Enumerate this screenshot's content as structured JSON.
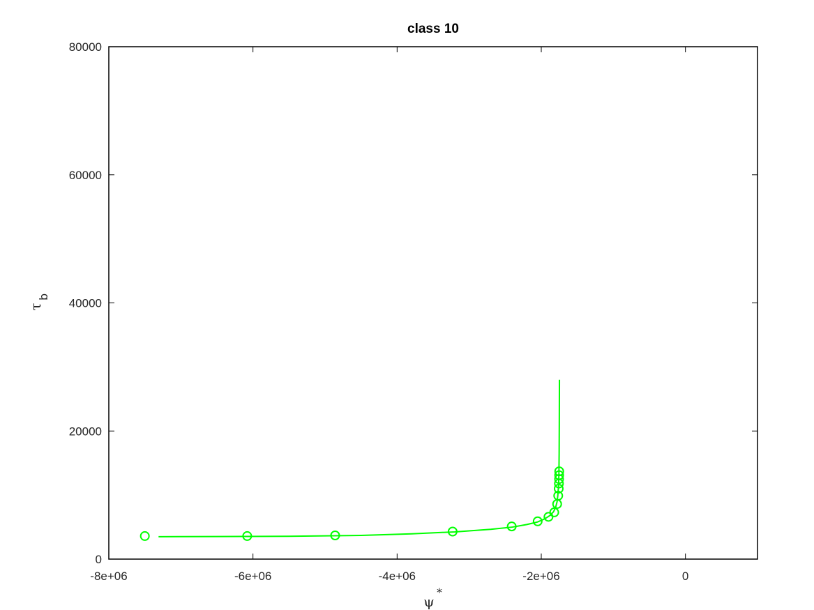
{
  "chart_data": {
    "type": "line",
    "title": "class 10",
    "xlabel": {
      "symbol": "ψ",
      "superscript": "*"
    },
    "ylabel": {
      "symbol": "τ",
      "subscript": "b"
    },
    "xlim": [
      -8000000,
      1000000
    ],
    "ylim": [
      0,
      80000
    ],
    "xticks": [
      -8000000,
      -6000000,
      -4000000,
      -2000000,
      0
    ],
    "xtick_labels": [
      "-8e+06",
      "-6e+06",
      "-4e+06",
      "-2e+06",
      "0"
    ],
    "yticks": [
      0,
      20000,
      40000,
      60000,
      80000
    ],
    "ytick_labels": [
      "0",
      "20000",
      "40000",
      "60000",
      "80000"
    ],
    "grid": false,
    "series": [
      {
        "style": "line",
        "color": "#00ff00",
        "x": [
          -7310000,
          -6500000,
          -5500000,
          -4500000,
          -3800000,
          -3200000,
          -2700000,
          -2400000,
          -2200000,
          -2050000,
          -1950000,
          -1880000,
          -1830000,
          -1800000,
          -1780000,
          -1770000,
          -1760000,
          -1755000,
          -1752000,
          -1750000,
          -1748000
        ],
        "y": [
          3500,
          3520,
          3560,
          3700,
          3950,
          4250,
          4650,
          5000,
          5400,
          5800,
          6300,
          6800,
          7400,
          8100,
          9000,
          10000,
          11500,
          13500,
          16500,
          21000,
          28000
        ]
      },
      {
        "style": "markers",
        "marker": "circle",
        "color": "#00ff00",
        "x": [
          -7500000,
          -6080000,
          -4860000,
          -3230000,
          -2410000,
          -2050000,
          -1900000,
          -1820000,
          -1780000,
          -1765000,
          -1758000,
          -1755000,
          -1753000,
          -1752000,
          -1751000
        ],
        "y": [
          3600,
          3600,
          3700,
          4300,
          5100,
          5900,
          6600,
          7300,
          8600,
          9900,
          11000,
          11800,
          12500,
          13100,
          13700
        ]
      }
    ]
  }
}
